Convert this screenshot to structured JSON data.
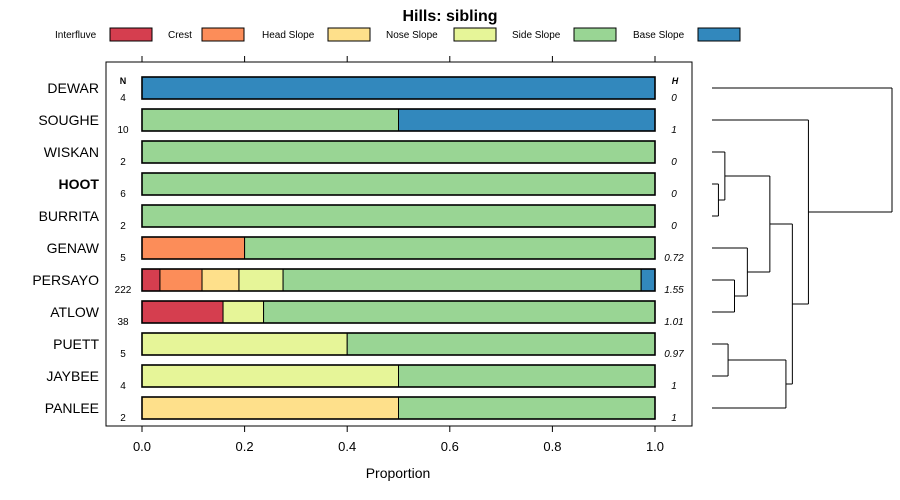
{
  "chart_data": {
    "type": "bar",
    "orientation": "horizontal",
    "stacked": true,
    "title": "Hills: sibling",
    "xlabel": "Proportion",
    "xlim": [
      0,
      1
    ],
    "xticks": [
      "0.0",
      "0.2",
      "0.4",
      "0.6",
      "0.8",
      "1.0"
    ],
    "n_header": "N",
    "h_header": "H",
    "highlight": "HOOT",
    "legend": [
      {
        "label": "Interfluve",
        "color": "#d53e4f"
      },
      {
        "label": "Crest",
        "color": "#fc8d59"
      },
      {
        "label": "Head Slope",
        "color": "#fee08b"
      },
      {
        "label": "Nose Slope",
        "color": "#e6f598"
      },
      {
        "label": "Side Slope",
        "color": "#99d594"
      },
      {
        "label": "Base Slope",
        "color": "#3288bd"
      }
    ],
    "categories": [
      "DEWAR",
      "SOUGHE",
      "WISKAN",
      "HOOT",
      "BURRITA",
      "GENAW",
      "PERSAYO",
      "ATLOW",
      "PUETT",
      "JAYBEE",
      "PANLEE"
    ],
    "n": [
      "4",
      "10",
      "2",
      "6",
      "2",
      "5",
      "222",
      "38",
      "5",
      "4",
      "2"
    ],
    "h": [
      "0",
      "1",
      "0",
      "0",
      "0",
      "0.72",
      "1.55",
      "1.01",
      "0.97",
      "1",
      "1"
    ],
    "series": [
      {
        "name": "Interfluve",
        "values": [
          0,
          0,
          0,
          0,
          0,
          0,
          0.035,
          0.158,
          0,
          0,
          0
        ]
      },
      {
        "name": "Crest",
        "values": [
          0,
          0,
          0,
          0,
          0,
          0.2,
          0.082,
          0,
          0,
          0,
          0
        ]
      },
      {
        "name": "Head Slope",
        "values": [
          0,
          0,
          0,
          0,
          0,
          0,
          0.072,
          0,
          0,
          0,
          0.5
        ]
      },
      {
        "name": "Nose Slope",
        "values": [
          0,
          0,
          0,
          0,
          0,
          0,
          0.086,
          0.079,
          0.4,
          0.5,
          0
        ]
      },
      {
        "name": "Side Slope",
        "values": [
          0,
          0.5,
          1,
          1,
          1,
          0.8,
          0.698,
          0.763,
          0.6,
          0.5,
          0.5
        ]
      },
      {
        "name": "Base Slope",
        "values": [
          1,
          0.5,
          0,
          0,
          0,
          0,
          0.027,
          0,
          0,
          0,
          0
        ]
      }
    ],
    "dendrogram": {
      "children": [
        {
          "leaf": 0
        },
        {
          "children": [
            {
              "leaf": 1
            },
            {
              "children": [
                {
                  "children": [
                    {
                      "children": [
                        {
                          "leaf": 2
                        },
                        {
                          "children": [
                            {
                              "leaf": 3
                            },
                            {
                              "leaf": 4
                            }
                          ],
                          "height": 0.1
                        }
                      ],
                      "height": 0.2
                    },
                    {
                      "children": [
                        {
                          "leaf": 5
                        },
                        {
                          "children": [
                            {
                              "leaf": 6
                            },
                            {
                              "leaf": 7
                            }
                          ],
                          "height": 0.35
                        }
                      ],
                      "height": 0.55
                    }
                  ],
                  "height": 0.9
                },
                {
                  "children": [
                    {
                      "children": [
                        {
                          "leaf": 8
                        },
                        {
                          "leaf": 9
                        }
                      ],
                      "height": 0.25
                    },
                    {
                      "leaf": 10
                    }
                  ],
                  "height": 1.15
                }
              ],
              "height": 1.25
            }
          ],
          "height": 1.5
        }
      ],
      "height": 2.8
    }
  }
}
